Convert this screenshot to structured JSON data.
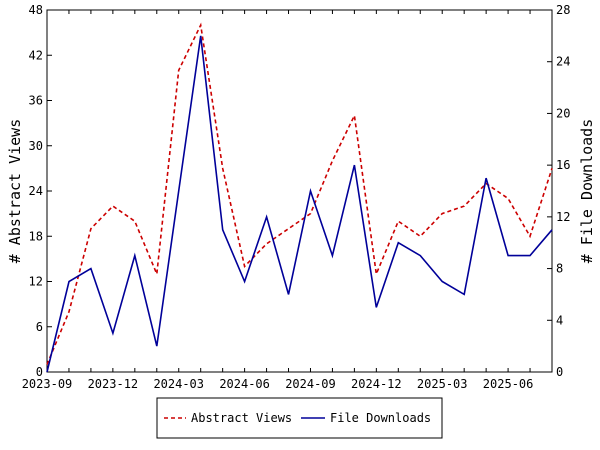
{
  "chart_data": {
    "type": "line",
    "x_tick_labels": [
      "2023-09",
      "2023-12",
      "2024-03",
      "2024-06",
      "2024-09",
      "2024-12",
      "2025-03",
      "2025-06"
    ],
    "x": [
      "2023-09",
      "2023-10",
      "2023-11",
      "2023-12",
      "2024-01",
      "2024-02",
      "2024-03",
      "2024-04",
      "2024-05",
      "2024-06",
      "2024-07",
      "2024-08",
      "2024-09",
      "2024-10",
      "2024-11",
      "2024-12",
      "2025-01",
      "2025-02",
      "2025-03",
      "2025-04",
      "2025-05",
      "2025-06",
      "2025-07",
      "2025-08"
    ],
    "series": [
      {
        "name": "Abstract Views",
        "axis": "left",
        "color": "#cc0000",
        "style": "dashed",
        "values": [
          1,
          8,
          19,
          22,
          20,
          13,
          40,
          46,
          27,
          14,
          17,
          19,
          21,
          28,
          34,
          13,
          20,
          18,
          21,
          22,
          25,
          23,
          18,
          27
        ]
      },
      {
        "name": "File Downloads",
        "axis": "right",
        "color": "#000099",
        "style": "solid",
        "values": [
          0,
          7,
          8,
          3,
          9,
          2,
          14,
          26,
          11,
          7,
          12,
          6,
          14,
          9,
          16,
          5,
          10,
          9,
          7,
          6,
          15,
          9,
          9,
          11
        ]
      }
    ],
    "y_left": {
      "label": "# Abstract Views",
      "ylim": [
        0,
        48
      ],
      "ticks": [
        0,
        6,
        12,
        18,
        24,
        30,
        36,
        42,
        48
      ]
    },
    "y_right": {
      "label": "# File Downloads",
      "ylim": [
        0,
        28
      ],
      "ticks": [
        0,
        4,
        8,
        12,
        16,
        20,
        24,
        28
      ]
    },
    "grid": false,
    "legend_position": "bottom-center"
  }
}
